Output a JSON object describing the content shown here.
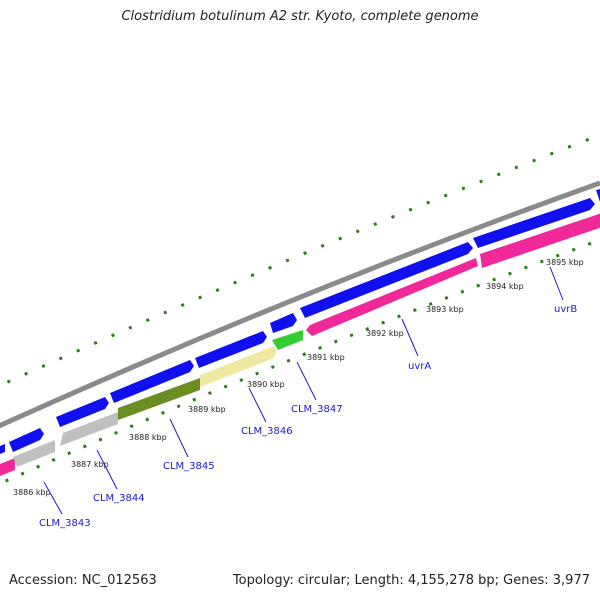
{
  "title": "Clostridium botulinum A2 str. Kyoto, complete genome",
  "footer": {
    "accession": "Accession: NC_012563",
    "summary": "Topology: circular; Length: 4,155,278 bp; Genes: 3,977"
  },
  "ticks": [
    "3886 kbp",
    "3887 kbp",
    "3888 kbp",
    "3889 kbp",
    "3890 kbp",
    "3891 kbp",
    "3892 kbp",
    "3893 kbp",
    "3894 kbp",
    "3895 kbp"
  ],
  "gene_labels": [
    "CLM_3843",
    "CLM_3844",
    "CLM_3845",
    "CLM_3846",
    "CLM_3847",
    "uvrA",
    "uvrB"
  ],
  "colors": {
    "backbone": "#8a8a8a",
    "forward_cds": "#1010ee",
    "reverse_pink": "#f0289a",
    "grey_gene": "#c0c0c0",
    "olive_gene": "#6b8e23",
    "yellow_gene": "#efe8a0",
    "green_gene": "#33cc33",
    "tick_green": "#2e7d1a",
    "label_blue": "#1a1ad6"
  }
}
